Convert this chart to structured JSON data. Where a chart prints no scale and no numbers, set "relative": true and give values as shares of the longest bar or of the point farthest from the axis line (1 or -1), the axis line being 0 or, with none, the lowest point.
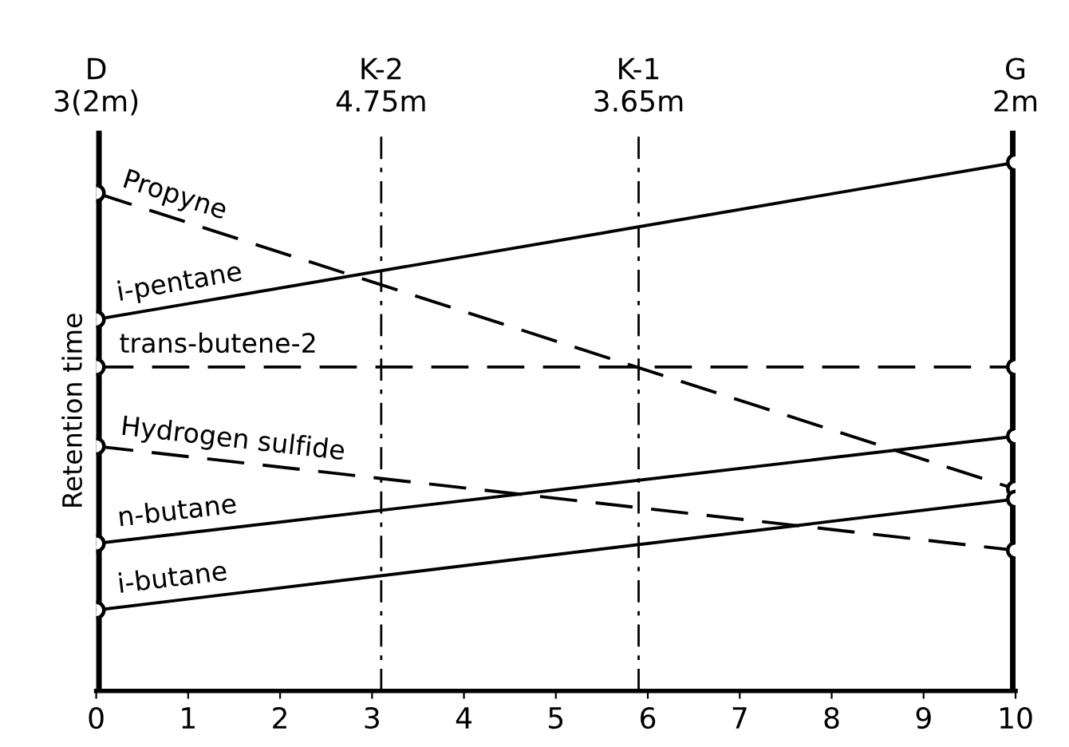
{
  "chart_data": {
    "type": "line",
    "relative": true,
    "ylabel": "Retention time",
    "xlim": [
      0,
      10
    ],
    "xticks": [
      0,
      1,
      2,
      3,
      4,
      5,
      6,
      7,
      8,
      9,
      10
    ],
    "x": [
      0,
      10
    ],
    "marker": "circle",
    "grid": false,
    "legend": false,
    "series": [
      {
        "name": "Propyne",
        "color": "#000000",
        "values": [
          0.942,
          0.382
        ],
        "line_style": "dashed"
      },
      {
        "name": "i-pentane",
        "color": "#000000",
        "values": [
          0.703,
          1
        ],
        "line_style": "solid"
      },
      {
        "name": "trans-butene-2",
        "color": "#000000",
        "values": [
          0.613,
          0.613
        ],
        "line_style": "dashed"
      },
      {
        "name": "Hydrogen sulfide",
        "color": "#000000",
        "values": [
          0.463,
          0.266
        ],
        "line_style": "dashed"
      },
      {
        "name": "n-butane",
        "color": "#000000",
        "values": [
          0.279,
          0.482
        ],
        "line_style": "solid"
      },
      {
        "name": "i-butane",
        "color": "#000000",
        "values": [
          0.153,
          0.363
        ],
        "line_style": "solid"
      }
    ],
    "ref_lines": [
      {
        "axis": "x",
        "value": 0,
        "color": "#000000",
        "line_style": "solid",
        "label": "D\n3(2m)"
      },
      {
        "axis": "x",
        "value": 10,
        "color": "#000000",
        "line_style": "solid",
        "label": "G\n2m"
      },
      {
        "axis": "x",
        "value": 3.1,
        "color": "#000000",
        "line_style": "dashdot",
        "label": "K-2\n4.75m"
      },
      {
        "axis": "x",
        "value": 5.9,
        "color": "#000000",
        "line_style": "dashdot",
        "label": "K-1\n3.65m"
      }
    ]
  }
}
